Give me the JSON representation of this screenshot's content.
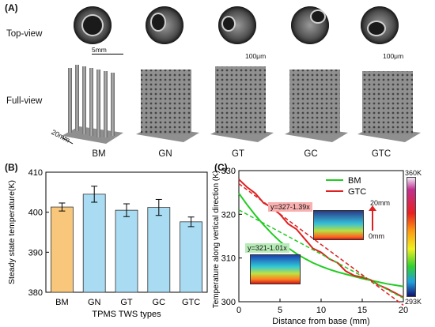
{
  "panel_a": {
    "tag": "(A)",
    "row_labels": [
      "Top-view",
      "Full-view"
    ],
    "scale_bars": [
      "5mm",
      "100μm",
      "100μm"
    ],
    "dimension": "20mm",
    "samples": [
      "BM",
      "GN",
      "GT",
      "GC",
      "GTC"
    ]
  },
  "panel_b": {
    "tag": "(B)"
  },
  "panel_c": {
    "tag": "(C)",
    "fit_gtc": "y=327-1.39x",
    "fit_bm": "y=321-1.01x",
    "height_top": "20mm",
    "height_bottom": "0mm",
    "colorbar_max": "360K",
    "colorbar_min": "293K"
  },
  "chart_data": [
    {
      "type": "bar",
      "categories": [
        "BM",
        "GN",
        "GT",
        "GC",
        "GTC"
      ],
      "values": [
        401.3,
        404.5,
        400.5,
        401.2,
        397.6
      ],
      "errors": [
        1.0,
        2.0,
        1.6,
        2.0,
        1.2
      ],
      "colors": [
        "#f9c77b",
        "#a9dcf3",
        "#a9dcf3",
        "#a9dcf3",
        "#a9dcf3"
      ],
      "xlabel": "TPMS TWS types",
      "ylabel": "Steady state temperature(K)",
      "ylim": [
        380,
        410
      ],
      "yticks": [
        380,
        390,
        400,
        410
      ]
    },
    {
      "type": "line",
      "xlabel": "Distance from base (mm)",
      "ylabel": "Temperature along vertical direction (K)",
      "xlim": [
        0,
        20
      ],
      "ylim": [
        300,
        330
      ],
      "xticks": [
        0,
        5,
        10,
        15,
        20
      ],
      "yticks": [
        300,
        310,
        320,
        330
      ],
      "legend_position": "top-right",
      "series": [
        {
          "name": "BM",
          "color": "#22cc22",
          "x": [
            0,
            1,
            2,
            3,
            4,
            5,
            6,
            7,
            8,
            9,
            10,
            11,
            12,
            13,
            14,
            15,
            16,
            17,
            18,
            19,
            20
          ],
          "y": [
            324.8,
            322.2,
            319.8,
            317.6,
            315.6,
            313.8,
            312.3,
            311.0,
            309.9,
            308.9,
            308.1,
            307.4,
            306.8,
            306.3,
            305.8,
            305.3,
            304.9,
            304.5,
            304.1,
            303.8,
            303.5
          ]
        },
        {
          "name": "GTC",
          "color": "#e02020",
          "x": [
            0,
            1,
            2,
            3,
            4,
            5,
            6,
            7,
            8,
            9,
            10,
            11,
            12,
            13,
            14,
            15,
            16,
            17,
            18,
            19,
            20
          ],
          "y": [
            328.0,
            326.2,
            324.8,
            322.6,
            321.6,
            320.0,
            317.8,
            316.6,
            314.4,
            312.2,
            311.3,
            309.8,
            308.9,
            307.0,
            306.0,
            305.6,
            305.0,
            303.8,
            303.0,
            302.0,
            301.0
          ]
        }
      ],
      "fits": [
        {
          "label_key": "panel_c.fit_gtc",
          "intercept": 327,
          "slope": -1.39,
          "color": "#e02020"
        },
        {
          "label_key": "panel_c.fit_bm",
          "intercept": 321,
          "slope": -1.01,
          "color": "#22cc22"
        }
      ]
    }
  ]
}
